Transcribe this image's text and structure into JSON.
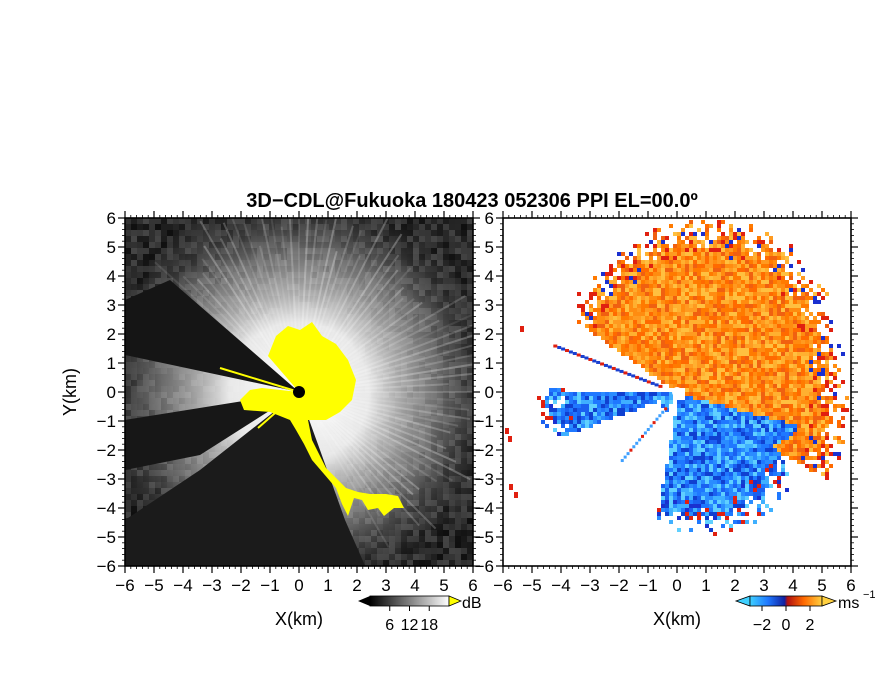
{
  "chart_data": {
    "type": "heatmap",
    "title": "3D−CDL@Fukuoka 180423 052306 PPI EL=00.0º",
    "panels": [
      {
        "id": "intensity",
        "xlabel": "X(km)",
        "ylabel": "Y(km)",
        "xlim": [
          -6,
          6
        ],
        "ylim": [
          -6,
          6
        ],
        "xticks": [
          -6,
          -5,
          -4,
          -3,
          -2,
          -1,
          0,
          1,
          2,
          3,
          4,
          5,
          6
        ],
        "yticks": [
          -6,
          -5,
          -4,
          -3,
          -2,
          -1,
          0,
          1,
          2,
          3,
          4,
          5,
          6
        ],
        "xtick_labels": [
          "−6",
          "−5",
          "−4",
          "−3",
          "−2",
          "−1",
          "0",
          "1",
          "2",
          "3",
          "4",
          "5",
          "6"
        ],
        "ytick_labels": [
          "−6",
          "−5",
          "−4",
          "−3",
          "−2",
          "−1",
          "0",
          "1",
          "2",
          "3",
          "4",
          "5",
          "6"
        ],
        "colorbar": {
          "unit": "dB",
          "ticks": [
            6,
            12,
            18
          ],
          "tick_labels": [
            "6",
            "12",
            "18"
          ],
          "range": [
            0,
            24
          ],
          "colormap": "grayscale",
          "colors": [
            "#000000",
            "#ffffff"
          ]
        },
        "highlight_color": "#ffff00"
      },
      {
        "id": "velocity",
        "xlabel": "X(km)",
        "xlim": [
          -6,
          6
        ],
        "ylim": [
          -6,
          6
        ],
        "xticks": [
          -6,
          -5,
          -4,
          -3,
          -2,
          -1,
          0,
          1,
          2,
          3,
          4,
          5,
          6
        ],
        "yticks": [
          -6,
          -5,
          -4,
          -3,
          -2,
          -1,
          0,
          1,
          2,
          3,
          4,
          5,
          6
        ],
        "xtick_labels": [
          "−6",
          "−5",
          "−4",
          "−3",
          "−2",
          "−1",
          "0",
          "1",
          "2",
          "3",
          "4",
          "5",
          "6"
        ],
        "ytick_labels": [
          "−6",
          "−5",
          "−4",
          "−3",
          "−2",
          "−1",
          "0",
          "1",
          "2",
          "3",
          "4",
          "5",
          "6"
        ],
        "colorbar": {
          "unit": "ms",
          "unit_exponent": "−1",
          "ticks": [
            -2,
            0,
            2
          ],
          "tick_labels": [
            "−2",
            "0",
            "2"
          ],
          "range": [
            -3,
            3
          ],
          "colormap": "diverging",
          "colors": [
            "#0a2ec8",
            "#1f78ff",
            "#3fc8ff",
            "#f02010",
            "#ff7a00",
            "#ffd040"
          ]
        }
      }
    ],
    "grid": false,
    "legend": "colorbars below each panel"
  }
}
